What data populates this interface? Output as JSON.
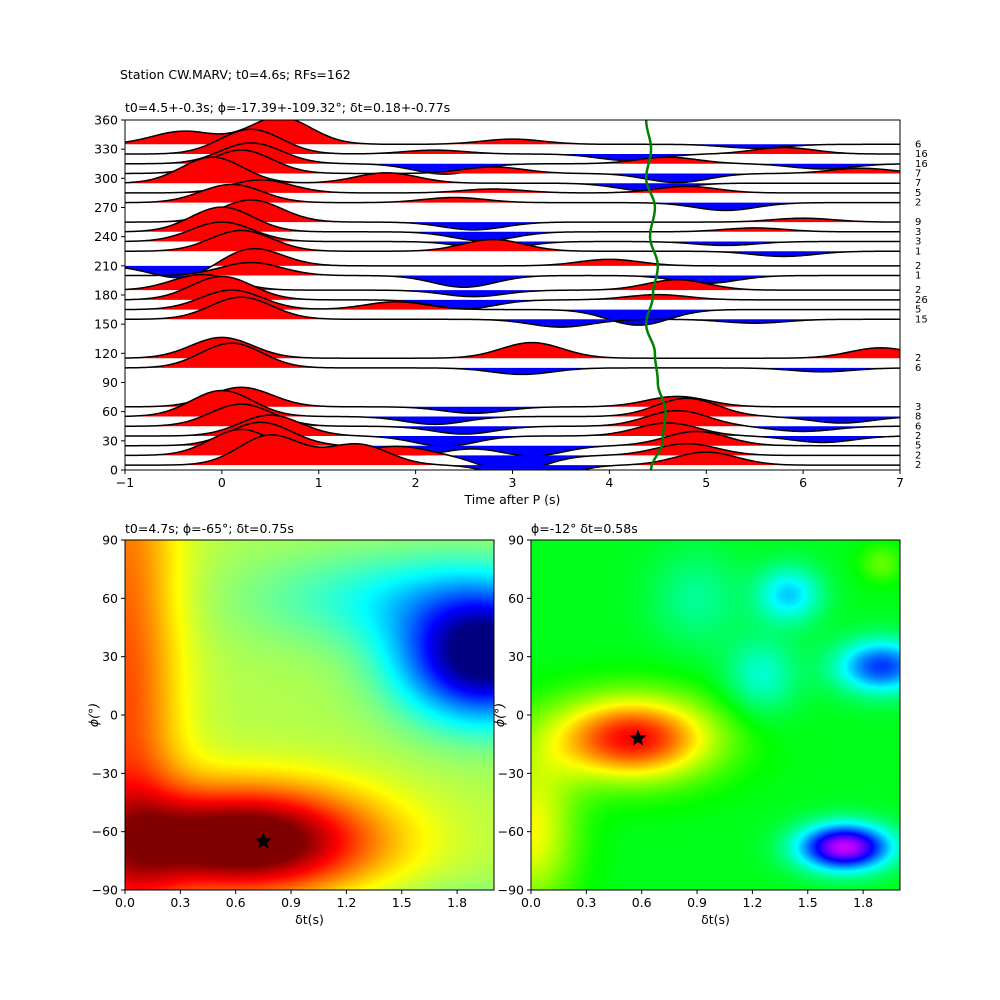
{
  "figure": {
    "suptitle": "Station CW.MARV; t0=4.6s; RFs=162"
  },
  "colors": {
    "positive": "#ff0000",
    "negative": "#0000ff",
    "trace": "#000000",
    "t0_curve": "#008000"
  },
  "chart_data": [
    {
      "type": "line",
      "title": "t0=4.5+-0.3s; ϕ=-17.39+-109.32°; δt=0.18+-0.77s",
      "xlabel": "Time after P (s)",
      "ylabel": "",
      "xlim": [
        -1,
        7
      ],
      "ylim": [
        0,
        360
      ],
      "xticks": [
        "−1",
        "0",
        "1",
        "2",
        "3",
        "4",
        "5",
        "6",
        "7"
      ],
      "xtick_values": [
        -1,
        0,
        1,
        2,
        3,
        4,
        5,
        6,
        7
      ],
      "yticks": [
        "0",
        "30",
        "60",
        "90",
        "120",
        "150",
        "180",
        "210",
        "240",
        "270",
        "300",
        "330",
        "360"
      ],
      "ytick_values": [
        0,
        30,
        60,
        90,
        120,
        150,
        180,
        210,
        240,
        270,
        300,
        330,
        360
      ],
      "traces": [
        {
          "baz": 5,
          "count": "2",
          "peaks": [
            [
              0.5,
              2.3
            ],
            [
              1.4,
              1.6
            ],
            [
              3.2,
              -1.5
            ],
            [
              5.0,
              1.0
            ]
          ]
        },
        {
          "baz": 15,
          "count": "2",
          "peaks": [
            [
              0.2,
              2.0
            ],
            [
              1.8,
              0.7
            ],
            [
              3.0,
              -1.3
            ],
            [
              4.8,
              0.9
            ]
          ]
        },
        {
          "baz": 25,
          "count": "5",
          "peaks": [
            [
              0.4,
              1.8
            ],
            [
              2.0,
              -0.7
            ],
            [
              3.2,
              -0.8
            ],
            [
              4.9,
              1.1
            ]
          ]
        },
        {
          "baz": 35,
          "count": "2",
          "peaks": [
            [
              0.5,
              1.6
            ],
            [
              2.3,
              -0.8
            ],
            [
              4.6,
              1.0
            ],
            [
              6.2,
              -0.5
            ]
          ]
        },
        {
          "baz": 45,
          "count": "6",
          "peaks": [
            [
              0.2,
              1.7
            ],
            [
              2.5,
              -0.6
            ],
            [
              4.7,
              1.2
            ],
            [
              6.0,
              -0.4
            ]
          ]
        },
        {
          "baz": 55,
          "count": "8",
          "peaks": [
            [
              0.0,
              2.0
            ],
            [
              2.2,
              -0.6
            ],
            [
              4.8,
              1.4
            ],
            [
              6.4,
              -0.5
            ]
          ]
        },
        {
          "baz": 65,
          "count": "3",
          "peaks": [
            [
              0.2,
              1.5
            ],
            [
              2.6,
              -0.5
            ],
            [
              4.7,
              0.8
            ]
          ]
        },
        {
          "baz": 105,
          "count": "6",
          "peaks": [
            [
              0.1,
              1.9
            ],
            [
              3.1,
              -0.5
            ],
            [
              6.2,
              -0.3
            ]
          ]
        },
        {
          "baz": 115,
          "count": "2",
          "peaks": [
            [
              0.0,
              1.6
            ],
            [
              3.2,
              1.2
            ],
            [
              6.8,
              0.8
            ]
          ]
        },
        {
          "baz": 155,
          "count": "15",
          "peaks": [
            [
              0.2,
              1.7
            ],
            [
              3.5,
              -0.6
            ],
            [
              5.5,
              -0.3
            ]
          ]
        },
        {
          "baz": 165,
          "count": "5",
          "peaks": [
            [
              0.1,
              1.5
            ],
            [
              1.8,
              0.6
            ],
            [
              4.3,
              -1.2
            ]
          ]
        },
        {
          "baz": 175,
          "count": "26",
          "peaks": [
            [
              0.0,
              1.8
            ],
            [
              2.5,
              -0.7
            ],
            [
              4.5,
              0.4
            ]
          ]
        },
        {
          "baz": 185,
          "count": "2",
          "peaks": [
            [
              -0.2,
              1.2
            ],
            [
              2.6,
              -0.5
            ],
            [
              4.7,
              0.8
            ]
          ]
        },
        {
          "baz": 200,
          "count": "1",
          "peaks": [
            [
              0.3,
              1.0
            ],
            [
              2.5,
              -0.9
            ],
            [
              5.0,
              -0.6
            ]
          ]
        },
        {
          "baz": 210,
          "count": "2",
          "peaks": [
            [
              -0.4,
              -1.0
            ],
            [
              0.3,
              1.4
            ],
            [
              4.0,
              0.5
            ]
          ]
        },
        {
          "baz": 225,
          "count": "1",
          "peaks": [
            [
              0.2,
              1.6
            ],
            [
              2.8,
              0.9
            ],
            [
              5.8,
              -0.4
            ]
          ]
        },
        {
          "baz": 235,
          "count": "3",
          "peaks": [
            [
              0.0,
              1.5
            ],
            [
              2.8,
              -0.6
            ],
            [
              5.2,
              -0.3
            ]
          ]
        },
        {
          "baz": 245,
          "count": "3",
          "peaks": [
            [
              0.0,
              1.9
            ],
            [
              2.7,
              -0.7
            ],
            [
              5.5,
              0.3
            ]
          ]
        },
        {
          "baz": 255,
          "count": "9",
          "peaks": [
            [
              0.3,
              1.7
            ],
            [
              2.6,
              -0.6
            ],
            [
              6.0,
              0.3
            ]
          ]
        },
        {
          "baz": 275,
          "count": "2",
          "peaks": [
            [
              0.1,
              1.4
            ],
            [
              2.4,
              0.4
            ],
            [
              5.2,
              -0.6
            ]
          ]
        },
        {
          "baz": 285,
          "count": "5",
          "peaks": [
            [
              0.4,
              1.0
            ],
            [
              2.8,
              0.3
            ],
            [
              4.8,
              0.5
            ]
          ]
        },
        {
          "baz": 295,
          "count": "7",
          "peaks": [
            [
              -0.1,
              2.0
            ],
            [
              1.7,
              0.8
            ],
            [
              4.4,
              -0.6
            ]
          ]
        },
        {
          "baz": 305,
          "count": "7",
          "peaks": [
            [
              0.2,
              1.8
            ],
            [
              2.8,
              0.5
            ],
            [
              4.7,
              -0.7
            ],
            [
              6.6,
              0.4
            ]
          ]
        },
        {
          "baz": 315,
          "count": "16",
          "peaks": [
            [
              0.3,
              1.6
            ],
            [
              2.3,
              -0.8
            ],
            [
              4.6,
              0.5
            ],
            [
              6.2,
              -0.4
            ]
          ]
        },
        {
          "baz": 325,
          "count": "16",
          "peaks": [
            [
              0.3,
              1.9
            ],
            [
              2.2,
              0.3
            ],
            [
              4.2,
              -0.5
            ],
            [
              5.8,
              0.5
            ]
          ]
        },
        {
          "baz": 335,
          "count": "6",
          "peaks": [
            [
              -0.4,
              1.0
            ],
            [
              0.6,
              2.1
            ],
            [
              3.0,
              0.4
            ],
            [
              5.5,
              -0.3
            ]
          ]
        }
      ],
      "t0_curve": {
        "baz": [
          0,
          30,
          60,
          90,
          120,
          150,
          180,
          210,
          240,
          270,
          300,
          330,
          360
        ],
        "time": [
          4.43,
          4.55,
          4.58,
          4.5,
          4.47,
          4.38,
          4.45,
          4.5,
          4.42,
          4.47,
          4.38,
          4.43,
          4.38
        ]
      }
    },
    {
      "type": "heatmap",
      "title": "t0=4.7s; ϕ=-65°; δt=0.75s",
      "xlabel": "δt(s)",
      "ylabel": "ϕ(°)",
      "xlim": [
        0,
        2
      ],
      "ylim": [
        -90,
        90
      ],
      "xticks": [
        "0.0",
        "0.3",
        "0.6",
        "0.9",
        "1.2",
        "1.5",
        "1.8"
      ],
      "xtick_values": [
        0,
        0.3,
        0.6,
        0.9,
        1.2,
        1.5,
        1.8
      ],
      "yticks": [
        "−90",
        "−60",
        "−30",
        "0",
        "30",
        "60",
        "90"
      ],
      "ytick_values": [
        -90,
        -60,
        -30,
        0,
        30,
        60,
        90
      ],
      "colormap": "jet",
      "best": {
        "dt": 0.75,
        "phi": -65
      },
      "field": {
        "base": 0.55,
        "bumps": [
          {
            "dt": 0.65,
            "phi": -65,
            "amp": 0.55,
            "sdt": 0.7,
            "sphi": 28,
            "period": 0
          },
          {
            "dt": 1.95,
            "phi": 30,
            "amp": -0.6,
            "sdt": 0.45,
            "sphi": 32,
            "period": 180
          },
          {
            "dt": 0.0,
            "phi": 0,
            "amp": 0.25,
            "sdt": 0.3,
            "sphi": 200,
            "period": 0
          },
          {
            "dt": 1.5,
            "phi": 60,
            "amp": -0.15,
            "sdt": 0.8,
            "sphi": 25,
            "period": 180
          }
        ]
      }
    },
    {
      "type": "heatmap",
      "title": "ϕ=-12° δt=0.58s",
      "xlabel": "δt(s)",
      "ylabel": "ϕ(°)",
      "xlim": [
        0,
        2
      ],
      "ylim": [
        -90,
        90
      ],
      "xticks": [
        "0.0",
        "0.3",
        "0.6",
        "0.9",
        "1.2",
        "1.5",
        "1.8"
      ],
      "xtick_values": [
        0,
        0.3,
        0.6,
        0.9,
        1.2,
        1.5,
        1.8
      ],
      "yticks": [
        "−90",
        "−60",
        "−30",
        "0",
        "30",
        "60",
        "90"
      ],
      "ytick_values": [
        -90,
        -60,
        -30,
        0,
        30,
        60,
        90
      ],
      "colormap": "hsv",
      "best": {
        "dt": 0.58,
        "phi": -12
      },
      "field": {
        "base": 0.35,
        "bumps": [
          {
            "dt": 0.55,
            "phi": -12,
            "amp": -0.35,
            "sdt": 0.45,
            "sphi": 22,
            "period": 0
          },
          {
            "dt": 0.0,
            "phi": -60,
            "amp": -0.18,
            "sdt": 0.25,
            "sphi": 40,
            "period": 0
          },
          {
            "dt": 1.7,
            "phi": -68,
            "amp": 0.45,
            "sdt": 0.25,
            "sphi": 12,
            "period": 0
          },
          {
            "dt": 1.9,
            "phi": 25,
            "amp": 0.28,
            "sdt": 0.25,
            "sphi": 14,
            "period": 0
          },
          {
            "dt": 1.4,
            "phi": 62,
            "amp": 0.18,
            "sdt": 0.18,
            "sphi": 15,
            "period": 0
          },
          {
            "dt": 1.9,
            "phi": 78,
            "amp": -0.08,
            "sdt": 0.12,
            "sphi": 10,
            "period": 0
          },
          {
            "dt": 1.25,
            "phi": 20,
            "amp": 0.12,
            "sdt": 0.2,
            "sphi": 20,
            "period": 0
          },
          {
            "dt": 0.9,
            "phi": 60,
            "amp": 0.08,
            "sdt": 0.25,
            "sphi": 25,
            "period": 0
          }
        ]
      }
    }
  ]
}
